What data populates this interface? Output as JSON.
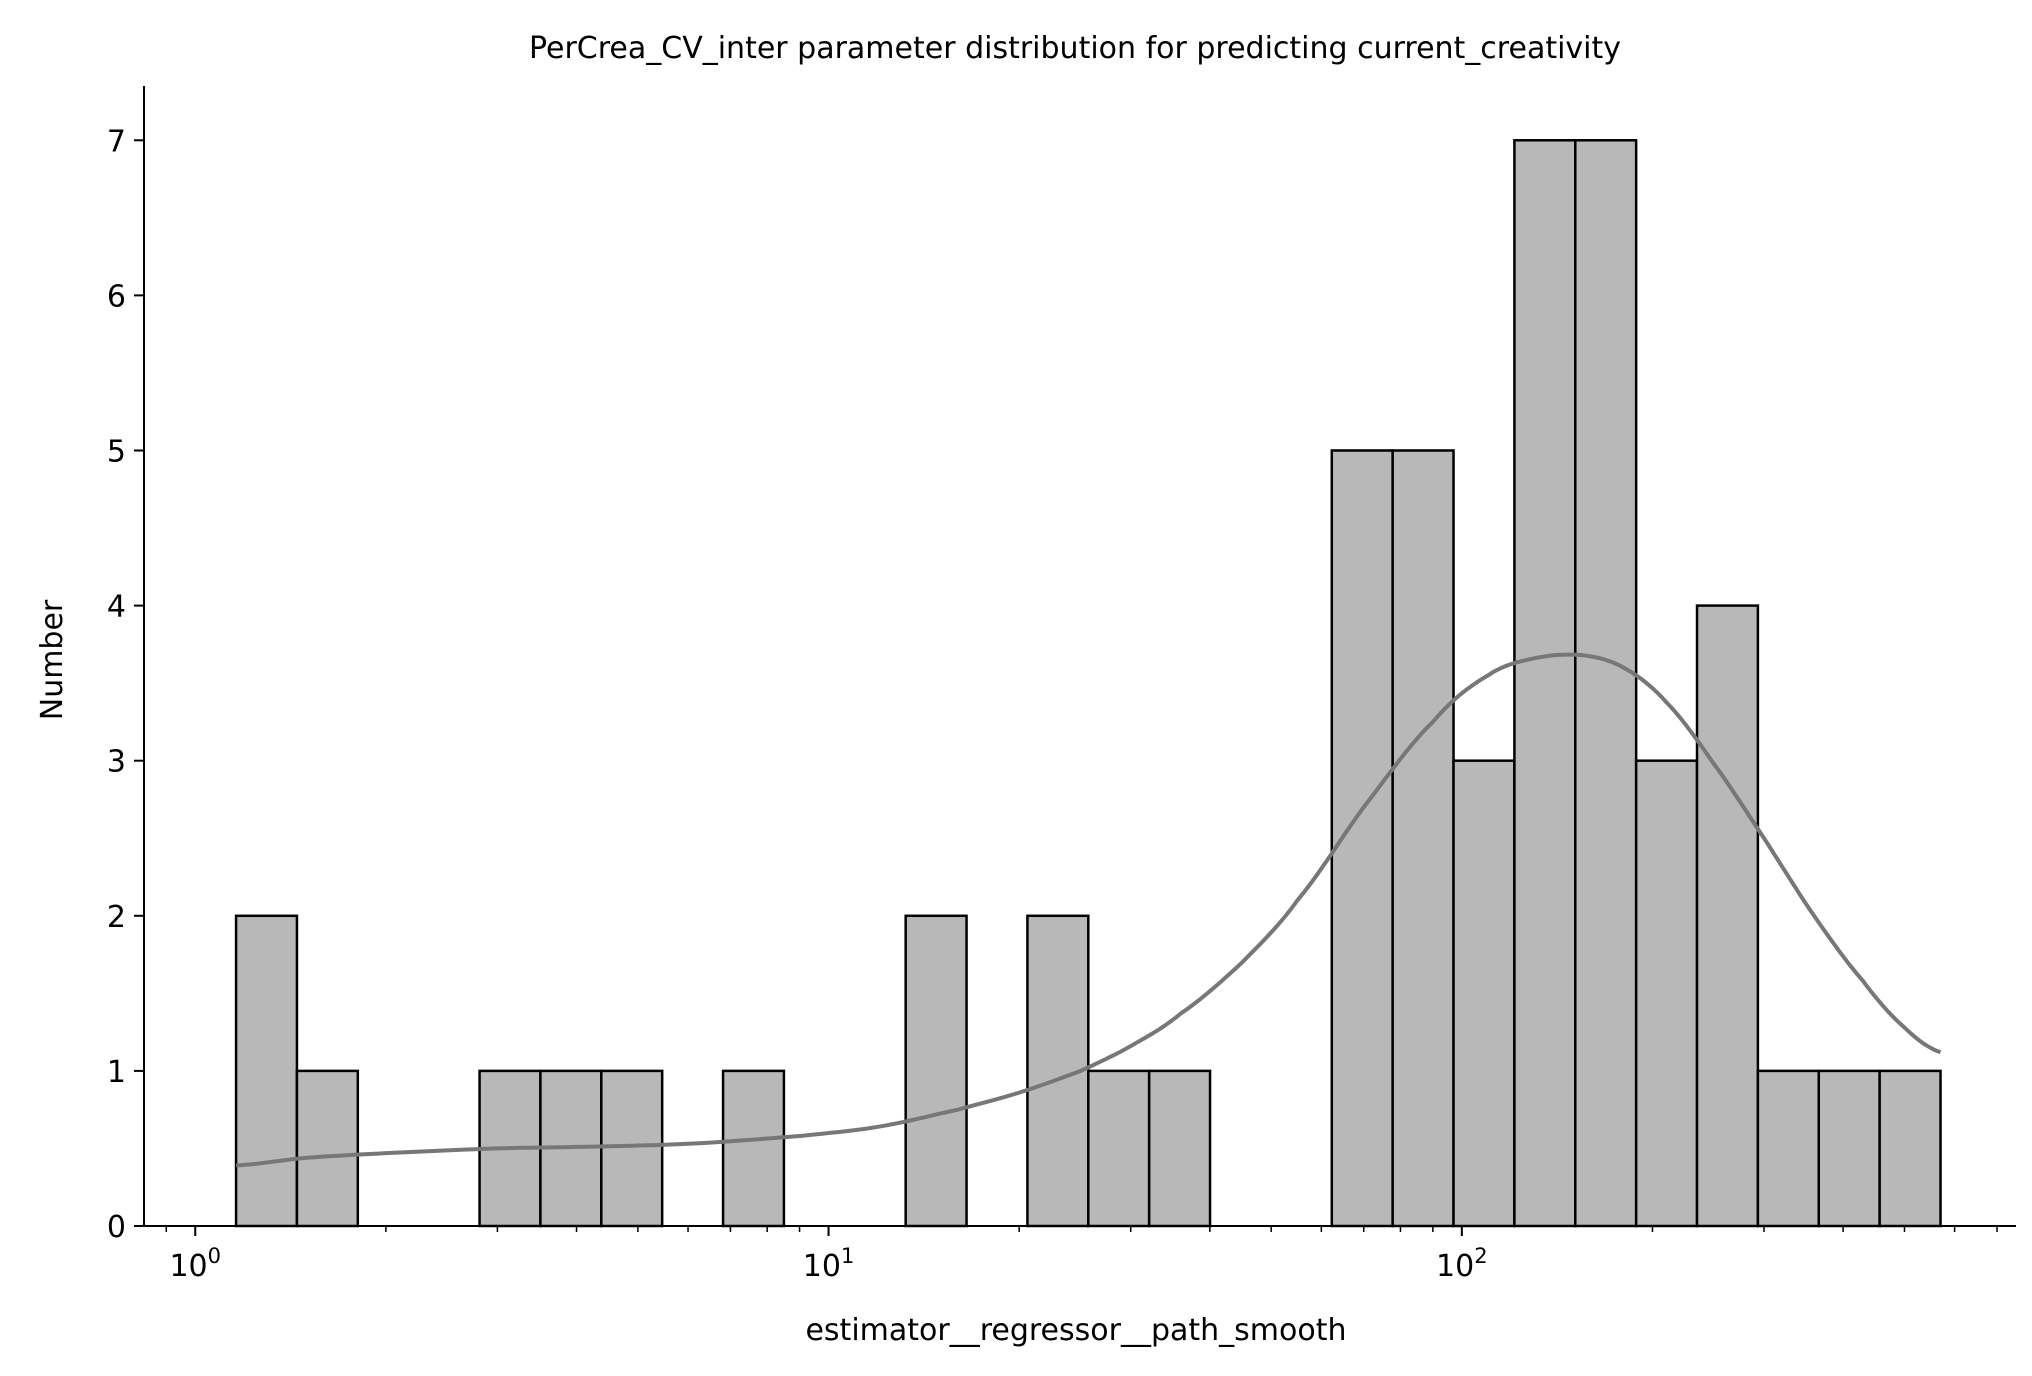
{
  "chart_data": {
    "type": "bar",
    "title": "PerCrea_CV_inter parameter distribution for predicting current_creativity",
    "xlabel": "estimator__regressor__path_smooth",
    "ylabel": "Number",
    "xscale": "log",
    "xlim": [
      0.83,
      750
    ],
    "ylim": [
      0,
      7.35
    ],
    "grid": false,
    "yticks": [
      "0",
      "1",
      "2",
      "3",
      "4",
      "5",
      "6",
      "7"
    ],
    "xticks": [
      {
        "value": 1,
        "base": "10",
        "exp": "0"
      },
      {
        "value": 10,
        "base": "10",
        "exp": "1"
      },
      {
        "value": 100,
        "base": "10",
        "exp": "2"
      }
    ],
    "bins": {
      "start": 1.16,
      "end": 570,
      "counts": [
        2,
        1,
        0,
        0,
        1,
        1,
        1,
        0,
        1,
        0,
        0,
        2,
        0,
        2,
        1,
        1,
        0,
        0,
        5,
        5,
        3,
        7,
        7,
        3,
        4,
        1,
        1,
        1
      ]
    },
    "kde": {
      "x": [
        1.16,
        1.5,
        2,
        3,
        4,
        6,
        9,
        12,
        16,
        20,
        25,
        30,
        36,
        45,
        55,
        70,
        90,
        110,
        130,
        155,
        180,
        210,
        250,
        300,
        360,
        430,
        500,
        570
      ],
      "y": [
        0.39,
        0.44,
        0.47,
        0.5,
        0.51,
        0.53,
        0.58,
        0.64,
        0.75,
        0.86,
        1.0,
        1.16,
        1.37,
        1.7,
        2.1,
        2.7,
        3.25,
        3.55,
        3.66,
        3.68,
        3.6,
        3.38,
        2.98,
        2.5,
        2.0,
        1.58,
        1.28,
        1.12
      ]
    },
    "colors": {
      "bar_fill": "#b8b8b8",
      "bar_edge": "#000000",
      "kde_line": "#777777",
      "axis": "#000000"
    }
  }
}
